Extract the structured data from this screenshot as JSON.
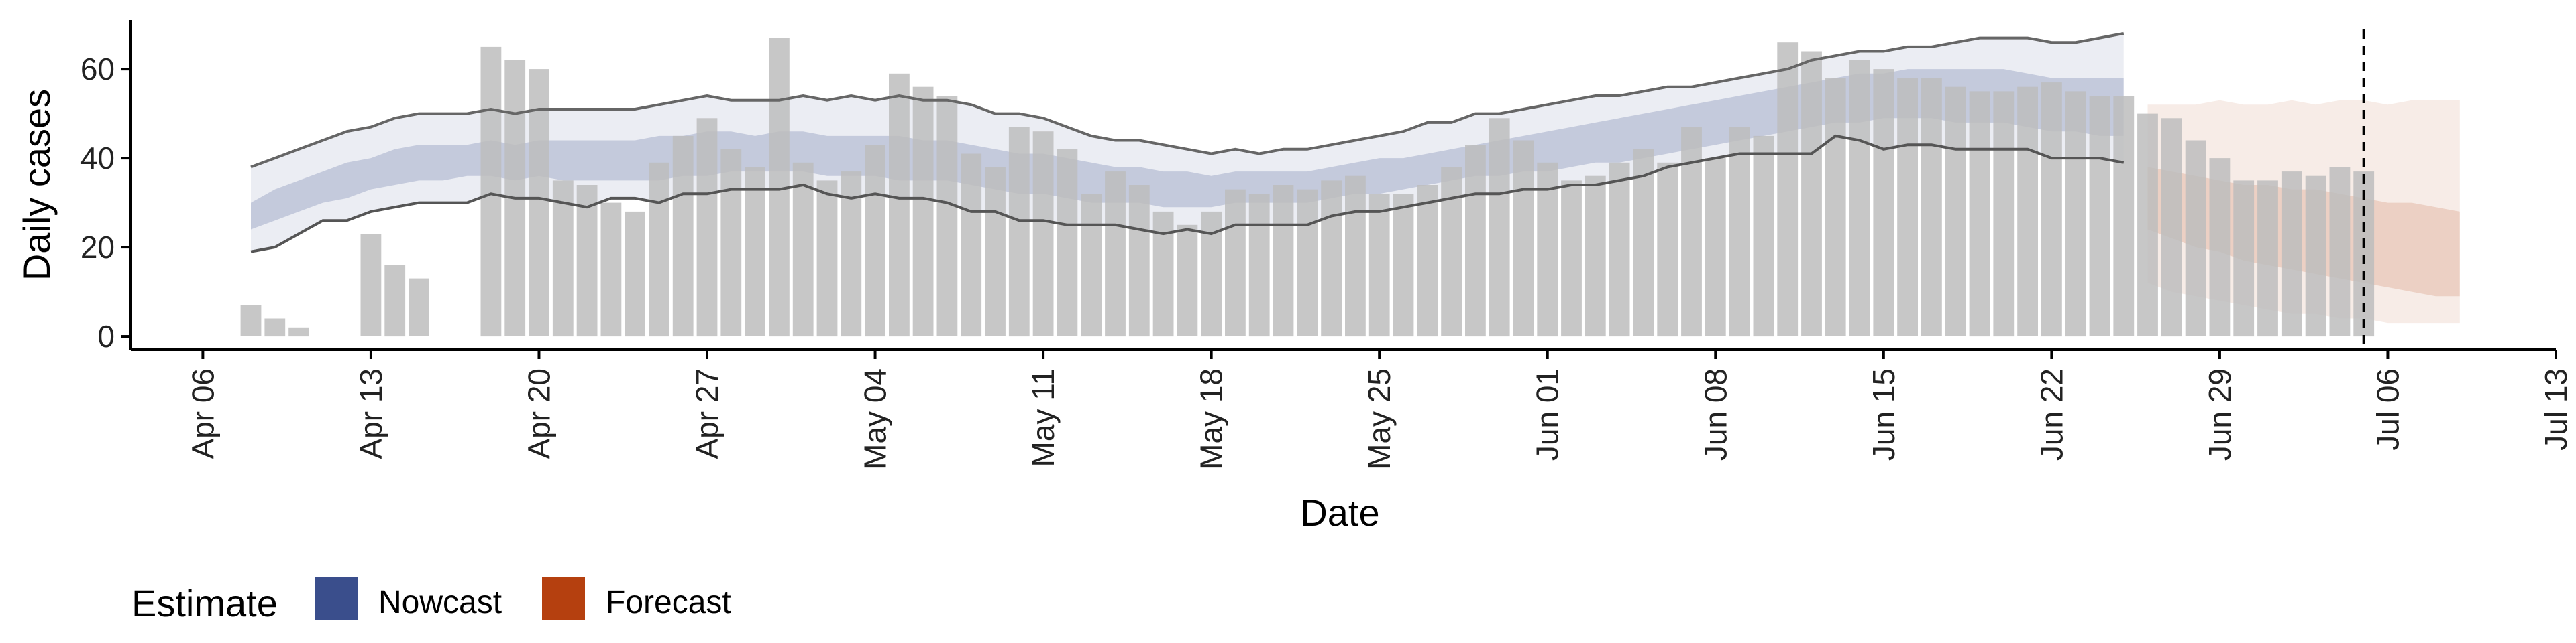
{
  "chart_data": {
    "type": "bar",
    "xlabel": "Date",
    "ylabel": "Daily cases",
    "ylim": [
      -3,
      71
    ],
    "xlim": [
      "2020-04-03",
      "2020-07-13"
    ],
    "x_ticks": [
      "Apr 06",
      "Apr 13",
      "Apr 20",
      "Apr 27",
      "May 04",
      "May 11",
      "May 18",
      "May 25",
      "Jun 01",
      "Jun 08",
      "Jun 15",
      "Jun 22",
      "Jun 29",
      "Jul 06",
      "Jul 13"
    ],
    "x_tick_dates": [
      "2020-04-06",
      "2020-04-13",
      "2020-04-20",
      "2020-04-27",
      "2020-05-04",
      "2020-05-11",
      "2020-05-18",
      "2020-05-25",
      "2020-06-01",
      "2020-06-08",
      "2020-06-15",
      "2020-06-22",
      "2020-06-29",
      "2020-07-06",
      "2020-07-13"
    ],
    "y_ticks": [
      0,
      20,
      40,
      60
    ],
    "grid": false,
    "reference_line_date": "2020-07-05",
    "bar_color": "#bdbdbd",
    "bars": {
      "dates": [
        "2020-04-08",
        "2020-04-09",
        "2020-04-10",
        "2020-04-11",
        "2020-04-12",
        "2020-04-13",
        "2020-04-14",
        "2020-04-15",
        "2020-04-16",
        "2020-04-17",
        "2020-04-18",
        "2020-04-19",
        "2020-04-20",
        "2020-04-21",
        "2020-04-22",
        "2020-04-23",
        "2020-04-24",
        "2020-04-25",
        "2020-04-26",
        "2020-04-27",
        "2020-04-28",
        "2020-04-29",
        "2020-04-30",
        "2020-05-01",
        "2020-05-02",
        "2020-05-03",
        "2020-05-04",
        "2020-05-05",
        "2020-05-06",
        "2020-05-07",
        "2020-05-08",
        "2020-05-09",
        "2020-05-10",
        "2020-05-11",
        "2020-05-12",
        "2020-05-13",
        "2020-05-14",
        "2020-05-15",
        "2020-05-16",
        "2020-05-17",
        "2020-05-18",
        "2020-05-19",
        "2020-05-20",
        "2020-05-21",
        "2020-05-22",
        "2020-05-23",
        "2020-05-24",
        "2020-05-25",
        "2020-05-26",
        "2020-05-27",
        "2020-05-28",
        "2020-05-29",
        "2020-05-30",
        "2020-05-31",
        "2020-06-01",
        "2020-06-02",
        "2020-06-03",
        "2020-06-04",
        "2020-06-05",
        "2020-06-06",
        "2020-06-07",
        "2020-06-08",
        "2020-06-09",
        "2020-06-10",
        "2020-06-11",
        "2020-06-12",
        "2020-06-13",
        "2020-06-14",
        "2020-06-15",
        "2020-06-16",
        "2020-06-17",
        "2020-06-18",
        "2020-06-19",
        "2020-06-20",
        "2020-06-21",
        "2020-06-22",
        "2020-06-23",
        "2020-06-24",
        "2020-06-25",
        "2020-06-26",
        "2020-06-27",
        "2020-06-28",
        "2020-06-29",
        "2020-06-30",
        "2020-07-01",
        "2020-07-02",
        "2020-07-03",
        "2020-07-04",
        "2020-07-05"
      ],
      "values": [
        7,
        4,
        2,
        0,
        0,
        23,
        16,
        13,
        0,
        0,
        65,
        62,
        60,
        35,
        34,
        30,
        28,
        39,
        45,
        49,
        42,
        38,
        67,
        39,
        35,
        37,
        43,
        59,
        56,
        54,
        41,
        38,
        47,
        46,
        42,
        32,
        37,
        34,
        28,
        25,
        28,
        33,
        32,
        34,
        33,
        35,
        36,
        32,
        32,
        34,
        38,
        43,
        49,
        44,
        39,
        35,
        36,
        39,
        42,
        39,
        47,
        40,
        47,
        45,
        66,
        64,
        58,
        62,
        60,
        58,
        58,
        56,
        55,
        55,
        56,
        57,
        55,
        54,
        54,
        50,
        49,
        44,
        40,
        35,
        35,
        37,
        36,
        38,
        37
      ]
    },
    "series": [
      {
        "name": "Nowcast",
        "color": "#3a4e8c",
        "dates": [
          "2020-04-08",
          "2020-04-09",
          "2020-04-10",
          "2020-04-11",
          "2020-04-12",
          "2020-04-13",
          "2020-04-14",
          "2020-04-15",
          "2020-04-16",
          "2020-04-17",
          "2020-04-18",
          "2020-04-19",
          "2020-04-20",
          "2020-04-21",
          "2020-04-22",
          "2020-04-23",
          "2020-04-24",
          "2020-04-25",
          "2020-04-26",
          "2020-04-27",
          "2020-04-28",
          "2020-04-29",
          "2020-04-30",
          "2020-05-01",
          "2020-05-02",
          "2020-05-03",
          "2020-05-04",
          "2020-05-05",
          "2020-05-06",
          "2020-05-07",
          "2020-05-08",
          "2020-05-09",
          "2020-05-10",
          "2020-05-11",
          "2020-05-12",
          "2020-05-13",
          "2020-05-14",
          "2020-05-15",
          "2020-05-16",
          "2020-05-17",
          "2020-05-18",
          "2020-05-19",
          "2020-05-20",
          "2020-05-21",
          "2020-05-22",
          "2020-05-23",
          "2020-05-24",
          "2020-05-25",
          "2020-05-26",
          "2020-05-27",
          "2020-05-28",
          "2020-05-29",
          "2020-05-30",
          "2020-05-31",
          "2020-06-01",
          "2020-06-02",
          "2020-06-03",
          "2020-06-04",
          "2020-06-05",
          "2020-06-06",
          "2020-06-07",
          "2020-06-08",
          "2020-06-09",
          "2020-06-10",
          "2020-06-11",
          "2020-06-12",
          "2020-06-13",
          "2020-06-14",
          "2020-06-15",
          "2020-06-16",
          "2020-06-17",
          "2020-06-18",
          "2020-06-19",
          "2020-06-20",
          "2020-06-21",
          "2020-06-22",
          "2020-06-23",
          "2020-06-24",
          "2020-06-25"
        ],
        "lower_90": [
          19,
          20,
          23,
          26,
          26,
          28,
          29,
          30,
          30,
          30,
          32,
          31,
          31,
          30,
          29,
          31,
          31,
          30,
          32,
          32,
          33,
          33,
          33,
          34,
          32,
          31,
          32,
          31,
          31,
          30,
          28,
          28,
          26,
          26,
          25,
          25,
          25,
          24,
          23,
          24,
          23,
          25,
          25,
          25,
          25,
          27,
          28,
          28,
          29,
          30,
          31,
          32,
          32,
          33,
          33,
          34,
          34,
          35,
          36,
          38,
          39,
          40,
          41,
          41,
          41,
          41,
          45,
          44,
          42,
          43,
          43,
          42,
          42,
          42,
          42,
          40,
          40,
          40,
          39
        ],
        "upper_90": [
          38,
          40,
          42,
          44,
          46,
          47,
          49,
          50,
          50,
          50,
          51,
          50,
          51,
          51,
          51,
          51,
          51,
          52,
          53,
          54,
          53,
          53,
          53,
          54,
          53,
          54,
          53,
          54,
          53,
          53,
          52,
          50,
          50,
          49,
          47,
          45,
          44,
          44,
          43,
          42,
          41,
          42,
          41,
          42,
          42,
          43,
          44,
          45,
          46,
          48,
          48,
          50,
          50,
          51,
          52,
          53,
          54,
          54,
          55,
          56,
          56,
          57,
          58,
          59,
          60,
          62,
          63,
          64,
          64,
          65,
          65,
          66,
          67,
          67,
          67,
          66,
          66,
          67,
          68
        ],
        "lower_50": [
          24,
          26,
          28,
          30,
          31,
          33,
          34,
          35,
          35,
          36,
          36,
          35,
          36,
          35,
          35,
          35,
          35,
          35,
          36,
          36,
          37,
          37,
          37,
          37,
          36,
          36,
          36,
          35,
          35,
          35,
          34,
          33,
          32,
          32,
          31,
          30,
          30,
          30,
          29,
          29,
          29,
          30,
          30,
          30,
          30,
          31,
          32,
          32,
          33,
          34,
          35,
          36,
          36,
          37,
          37,
          38,
          39,
          39,
          40,
          41,
          42,
          43,
          44,
          45,
          46,
          47,
          48,
          48,
          49,
          49,
          49,
          48,
          48,
          48,
          47,
          46,
          46,
          45,
          45
        ],
        "upper_50": [
          30,
          33,
          35,
          37,
          39,
          40,
          42,
          43,
          43,
          43,
          44,
          43,
          44,
          44,
          44,
          44,
          44,
          45,
          45,
          46,
          46,
          45,
          46,
          46,
          45,
          45,
          45,
          45,
          44,
          44,
          43,
          42,
          41,
          41,
          40,
          39,
          38,
          38,
          37,
          37,
          36,
          37,
          37,
          37,
          37,
          38,
          39,
          40,
          40,
          41,
          42,
          43,
          44,
          45,
          46,
          47,
          48,
          49,
          50,
          51,
          52,
          53,
          54,
          55,
          56,
          57,
          58,
          59,
          59,
          60,
          60,
          60,
          60,
          60,
          59,
          58,
          58,
          58,
          58
        ]
      },
      {
        "name": "Forecast",
        "color": "#b5400f",
        "dates": [
          "2020-06-26",
          "2020-06-27",
          "2020-06-28",
          "2020-06-29",
          "2020-06-30",
          "2020-07-01",
          "2020-07-02",
          "2020-07-03",
          "2020-07-04",
          "2020-07-05",
          "2020-07-06",
          "2020-07-07",
          "2020-07-08",
          "2020-07-09"
        ],
        "lower_90": [
          12,
          10,
          9,
          8,
          7,
          6,
          5,
          5,
          4,
          4,
          3,
          3,
          3,
          3
        ],
        "upper_90": [
          52,
          52,
          52,
          53,
          52,
          52,
          53,
          52,
          53,
          53,
          52,
          53,
          53,
          53
        ],
        "lower_50": [
          24,
          22,
          20,
          19,
          17,
          16,
          15,
          14,
          13,
          12,
          11,
          10,
          9,
          9
        ],
        "upper_50": [
          38,
          37,
          36,
          35,
          34,
          34,
          33,
          33,
          32,
          31,
          30,
          30,
          29,
          28
        ]
      }
    ]
  },
  "legend": {
    "title": "Estimate",
    "items": [
      {
        "label": "Nowcast",
        "color": "#3a4e8c"
      },
      {
        "label": "Forecast",
        "color": "#b5400f"
      }
    ]
  }
}
